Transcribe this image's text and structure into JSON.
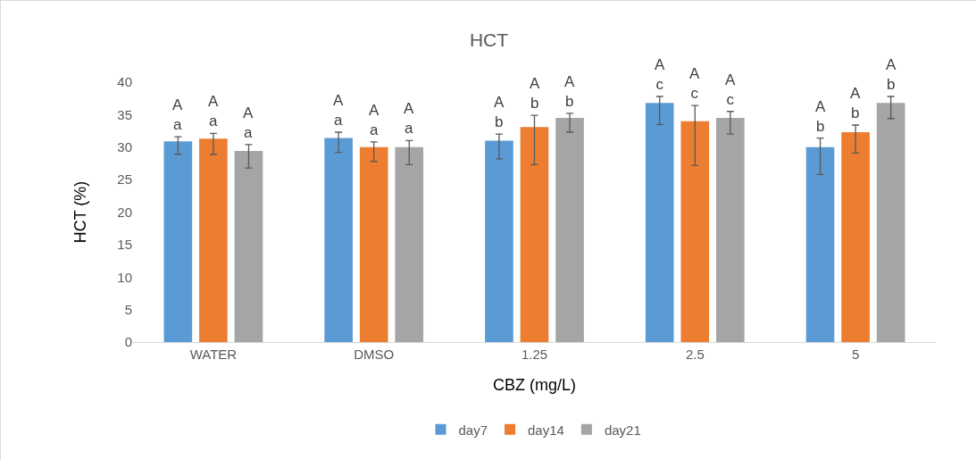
{
  "chart_data": {
    "type": "bar",
    "title": "HCT",
    "xlabel": "CBZ (mg/L)",
    "ylabel": "HCT (%)",
    "categories": [
      "WATER",
      "DMSO",
      "1.25",
      "2.5",
      "5"
    ],
    "series": [
      {
        "name": "day7",
        "color": "#5b9bd5",
        "values": [
          30.9,
          31.4,
          31.0,
          36.8,
          30.0
        ],
        "errors": [
          [
            28.9,
            31.6
          ],
          [
            29.2,
            32.3
          ],
          [
            28.2,
            32.0
          ],
          [
            33.5,
            37.8
          ],
          [
            25.8,
            31.4
          ]
        ],
        "value_labels": [
          "A\na",
          "A\na",
          "A\nb",
          "A\nc",
          "A\nb"
        ]
      },
      {
        "name": "day14",
        "color": "#ed7d31",
        "values": [
          31.3,
          30.0,
          33.1,
          34.0,
          32.3
        ],
        "errors": [
          [
            28.9,
            32.1
          ],
          [
            27.8,
            30.8
          ],
          [
            27.3,
            34.9
          ],
          [
            27.2,
            36.4
          ],
          [
            29.1,
            33.4
          ]
        ],
        "value_labels": [
          "A\na",
          "A\na",
          "A\nb",
          "A\nc",
          "A\nb"
        ]
      },
      {
        "name": "day21",
        "color": "#a5a5a5",
        "values": [
          29.4,
          30.0,
          34.5,
          34.5,
          36.8
        ],
        "errors": [
          [
            26.8,
            30.4
          ],
          [
            27.3,
            31.0
          ],
          [
            32.3,
            35.2
          ],
          [
            32.0,
            35.5
          ],
          [
            34.4,
            37.8
          ]
        ],
        "value_labels": [
          "A\na",
          "A\na",
          "A\nb",
          "A\nc",
          "A\nb"
        ]
      }
    ],
    "ylim": [
      0,
      40
    ],
    "yticks": [
      0,
      5,
      10,
      15,
      20,
      25,
      30,
      35,
      40
    ],
    "grid": false,
    "legend": "bottom"
  }
}
